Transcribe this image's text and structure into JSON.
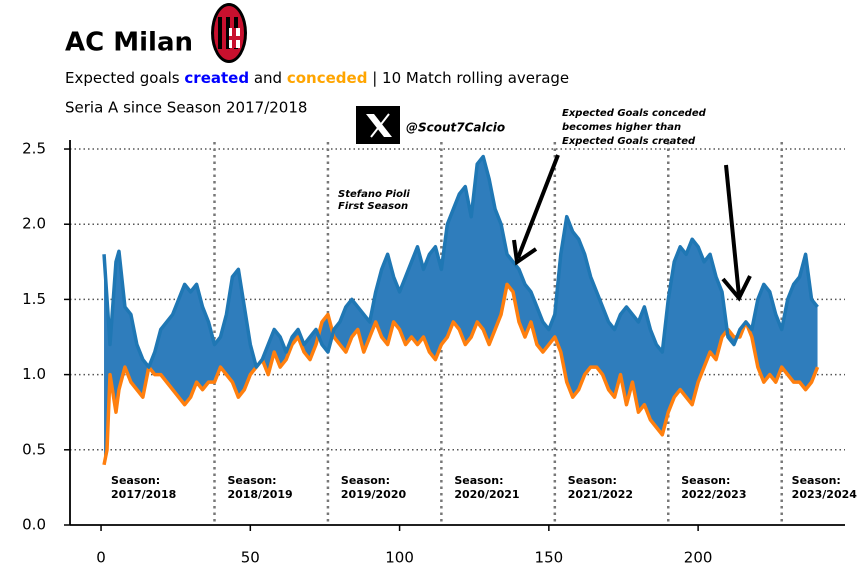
{
  "chart_data": {
    "type": "line",
    "title": "AC Milan",
    "subtitle": [
      "Expected goals ",
      "created",
      " and ",
      "conceded",
      " | 10 Match rolling average"
    ],
    "subtitle2": "Seria A since Season 2017/2018",
    "handle": "@Scout7Calcio",
    "annotations": [
      [
        "Stefano Pioli",
        "First Season"
      ],
      [
        "Expected Goals conceded",
        "becomes higher than",
        "Expected Goals created"
      ]
    ],
    "season_prefix": "Season:",
    "seasons": [
      {
        "x": 2,
        "label": "2017/2018"
      },
      {
        "x": 41,
        "label": "2018/2019"
      },
      {
        "x": 79,
        "label": "2019/2020"
      },
      {
        "x": 117,
        "label": "2020/2021"
      },
      {
        "x": 155,
        "label": "2021/2022"
      },
      {
        "x": 193,
        "label": "2022/2023"
      },
      {
        "x": 230,
        "label": "2023/2024"
      }
    ],
    "season_lines": [
      38,
      76,
      114,
      152,
      190,
      228
    ],
    "x": [
      1,
      2,
      3,
      5,
      6,
      8,
      10,
      12,
      14,
      16,
      18,
      20,
      22,
      24,
      26,
      28,
      30,
      32,
      34,
      36,
      38,
      40,
      42,
      44,
      46,
      48,
      50,
      52,
      54,
      56,
      58,
      60,
      62,
      64,
      66,
      68,
      70,
      72,
      74,
      76,
      78,
      80,
      82,
      84,
      86,
      88,
      90,
      92,
      94,
      96,
      98,
      100,
      102,
      104,
      106,
      108,
      110,
      112,
      114,
      116,
      118,
      120,
      122,
      124,
      126,
      128,
      130,
      132,
      134,
      136,
      138,
      140,
      142,
      144,
      146,
      148,
      150,
      152,
      154,
      156,
      158,
      160,
      162,
      164,
      166,
      168,
      170,
      172,
      174,
      176,
      178,
      180,
      182,
      184,
      186,
      188,
      190,
      192,
      194,
      196,
      198,
      200,
      202,
      204,
      206,
      208,
      210,
      212,
      214,
      216,
      218,
      220,
      222,
      224,
      226,
      228,
      230,
      232,
      234,
      236,
      238,
      240
    ],
    "series": [
      {
        "name": "created",
        "color": "#1f77b4",
        "values": [
          1.8,
          1.5,
          1.2,
          1.75,
          1.82,
          1.45,
          1.4,
          1.2,
          1.1,
          1.05,
          1.15,
          1.3,
          1.35,
          1.4,
          1.5,
          1.6,
          1.55,
          1.6,
          1.45,
          1.35,
          1.2,
          1.25,
          1.4,
          1.65,
          1.7,
          1.45,
          1.2,
          1.05,
          1.1,
          1.2,
          1.3,
          1.25,
          1.15,
          1.25,
          1.3,
          1.2,
          1.25,
          1.3,
          1.2,
          1.15,
          1.3,
          1.35,
          1.45,
          1.5,
          1.45,
          1.4,
          1.35,
          1.55,
          1.7,
          1.8,
          1.65,
          1.55,
          1.65,
          1.75,
          1.85,
          1.7,
          1.8,
          1.85,
          1.7,
          2.0,
          2.1,
          2.2,
          2.25,
          2.05,
          2.4,
          2.45,
          2.3,
          2.1,
          2.0,
          1.8,
          1.75,
          1.7,
          1.6,
          1.55,
          1.45,
          1.35,
          1.3,
          1.4,
          1.8,
          2.05,
          1.95,
          1.9,
          1.8,
          1.65,
          1.55,
          1.45,
          1.35,
          1.3,
          1.4,
          1.45,
          1.4,
          1.35,
          1.45,
          1.3,
          1.2,
          1.15,
          1.5,
          1.75,
          1.85,
          1.8,
          1.9,
          1.85,
          1.75,
          1.8,
          1.65,
          1.55,
          1.25,
          1.2,
          1.3,
          1.35,
          1.3,
          1.5,
          1.6,
          1.55,
          1.4,
          1.3,
          1.5,
          1.6,
          1.65,
          1.8,
          1.5,
          1.45
        ]
      },
      {
        "name": "conceded",
        "color": "#ff7f0e",
        "values": [
          0.4,
          0.5,
          1.0,
          0.75,
          0.9,
          1.05,
          0.95,
          0.9,
          0.85,
          1.05,
          1.0,
          1.0,
          0.95,
          0.9,
          0.85,
          0.8,
          0.85,
          0.95,
          0.9,
          0.95,
          0.95,
          1.05,
          1.0,
          0.95,
          0.85,
          0.9,
          1.0,
          1.05,
          1.1,
          1.0,
          1.15,
          1.05,
          1.1,
          1.2,
          1.25,
          1.15,
          1.1,
          1.2,
          1.35,
          1.4,
          1.25,
          1.2,
          1.15,
          1.25,
          1.3,
          1.15,
          1.25,
          1.35,
          1.25,
          1.2,
          1.35,
          1.3,
          1.2,
          1.25,
          1.2,
          1.25,
          1.15,
          1.1,
          1.2,
          1.25,
          1.35,
          1.3,
          1.2,
          1.25,
          1.35,
          1.3,
          1.2,
          1.3,
          1.4,
          1.6,
          1.55,
          1.35,
          1.25,
          1.35,
          1.2,
          1.15,
          1.2,
          1.25,
          1.15,
          0.95,
          0.85,
          0.9,
          1.0,
          1.05,
          1.05,
          1.0,
          0.9,
          0.85,
          1.0,
          0.8,
          0.95,
          0.75,
          0.8,
          0.7,
          0.65,
          0.6,
          0.75,
          0.85,
          0.9,
          0.85,
          0.8,
          0.95,
          1.05,
          1.15,
          1.1,
          1.25,
          1.3,
          1.25,
          1.25,
          1.35,
          1.25,
          1.05,
          0.95,
          1.0,
          0.95,
          1.05,
          1.0,
          0.95,
          0.95,
          0.9,
          0.95,
          1.05
        ]
      }
    ],
    "fill_color": "#2f7dbc",
    "xlim": [
      -10.4,
      249.2
    ],
    "ylim": [
      0,
      2.56
    ],
    "xticks": [
      0,
      50,
      100,
      150,
      200
    ],
    "yticks": [
      {
        "value": 0,
        "label": "0.0"
      },
      0.5,
      {
        "value": 1,
        "label": "1.0"
      },
      1.5,
      {
        "value": 2,
        "label": "2.0"
      },
      2.5
    ],
    "grid": true
  }
}
